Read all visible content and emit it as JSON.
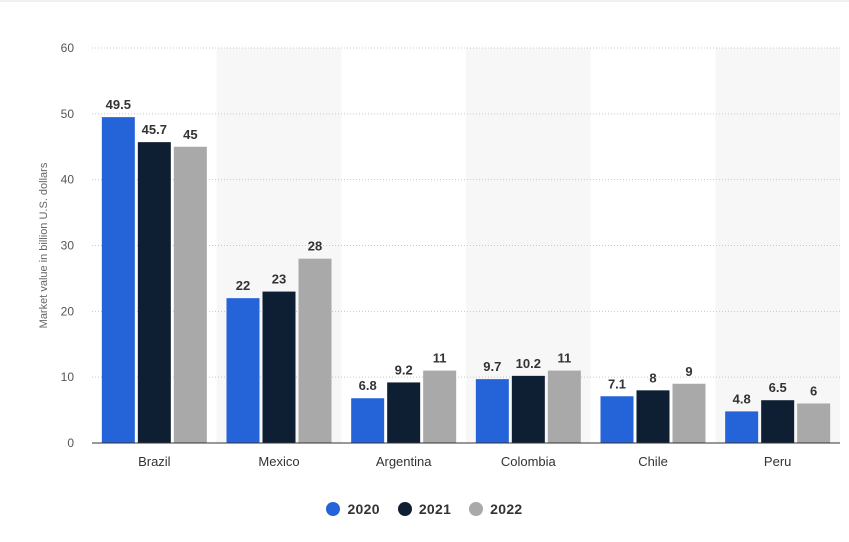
{
  "chart_data": {
    "type": "bar",
    "ylabel": "Market value in billion U.S. dollars",
    "xlabel": "",
    "ylim": [
      0,
      60
    ],
    "yticks": [
      0,
      10,
      20,
      30,
      40,
      50,
      60
    ],
    "grid": true,
    "legend_position": "bottom-center",
    "categories": [
      "Brazil",
      "Mexico",
      "Argentina",
      "Colombia",
      "Chile",
      "Peru"
    ],
    "series": [
      {
        "name": "2020",
        "color": "#2563d9",
        "values": [
          49.5,
          22,
          6.8,
          9.7,
          7.1,
          4.8
        ],
        "labels": [
          "49.5",
          "22",
          "6.8",
          "9.7",
          "7.1",
          "4.8"
        ]
      },
      {
        "name": "2021",
        "color": "#0f1f33",
        "values": [
          45.7,
          23,
          9.2,
          10.2,
          8,
          6.5
        ],
        "labels": [
          "45.7",
          "23",
          "9.2",
          "10.2",
          "8",
          "6.5"
        ]
      },
      {
        "name": "2022",
        "color": "#a9a9a9",
        "values": [
          45,
          28,
          11,
          11,
          9,
          6
        ],
        "labels": [
          "45",
          "28",
          "11",
          "11",
          "9",
          "6"
        ]
      }
    ]
  }
}
